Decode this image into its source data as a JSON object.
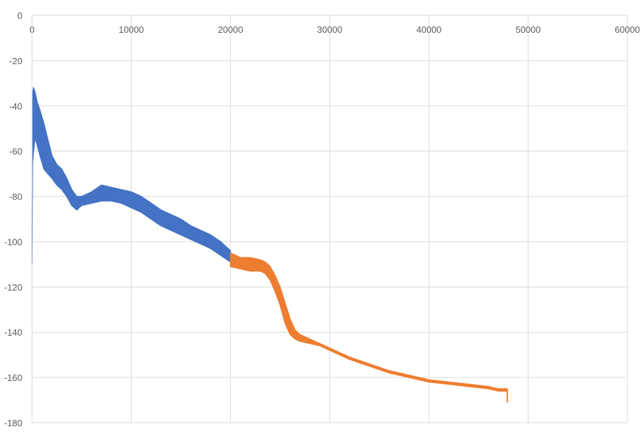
{
  "chart_data": {
    "type": "line",
    "title": "",
    "xlabel": "",
    "ylabel": "",
    "xlim": [
      0,
      60000
    ],
    "ylim": [
      -180,
      0
    ],
    "x_ticks": [
      0,
      10000,
      20000,
      30000,
      40000,
      50000,
      60000
    ],
    "y_ticks": [
      0,
      -20,
      -40,
      -60,
      -80,
      -100,
      -120,
      -140,
      -160,
      -180
    ],
    "x_tick_labels": [
      "0",
      "10000",
      "20000",
      "30000",
      "40000",
      "50000",
      "60000"
    ],
    "y_tick_labels": [
      "0",
      "-20",
      "-40",
      "-60",
      "-80",
      "-100",
      "-120",
      "-140",
      "-160",
      "-180"
    ],
    "grid": true,
    "legend": "none",
    "series": [
      {
        "color": "#4472C4",
        "x": [
          0,
          50,
          150,
          300,
          500,
          800,
          1200,
          1600,
          2000,
          2500,
          3000,
          3500,
          4000,
          4500,
          5000,
          6000,
          7000,
          8000,
          9000,
          10000,
          11000,
          12000,
          13000,
          14000,
          15000,
          16000,
          17000,
          18000,
          19000,
          20000
        ],
        "upper": [
          -93,
          -35,
          -32,
          -34,
          -38,
          -42,
          -48,
          -55,
          -62,
          -66,
          -68,
          -72,
          -77,
          -80,
          -80,
          -78,
          -75,
          -76,
          -77,
          -78,
          -80,
          -83,
          -86,
          -88,
          -90,
          -93,
          -95,
          -97,
          -100,
          -104
        ],
        "lower": [
          -110,
          -65,
          -60,
          -54,
          -57,
          -62,
          -68,
          -70,
          -72,
          -75,
          -77,
          -80,
          -84,
          -86,
          -84,
          -83,
          -82,
          -82,
          -83,
          -85,
          -87,
          -90,
          -93,
          -95,
          -97,
          -99,
          -101,
          -103,
          -106,
          -109
        ]
      },
      {
        "color": "#ED7D31",
        "x": [
          20000,
          21000,
          22000,
          23000,
          23500,
          24000,
          24500,
          25000,
          25500,
          26000,
          26500,
          27000,
          28000,
          29000,
          30000,
          32000,
          34000,
          36000,
          38000,
          40000,
          42000,
          44000,
          46000,
          47000,
          47900
        ],
        "upper": [
          -105,
          -107,
          -107,
          -108,
          -109,
          -111,
          -115,
          -120,
          -127,
          -134,
          -139,
          -141,
          -143,
          -145,
          -147,
          -151,
          -154,
          -157,
          -159,
          -161,
          -162,
          -163,
          -164,
          -165,
          -165
        ],
        "lower": [
          -111,
          -112,
          -113,
          -113,
          -114,
          -117,
          -122,
          -128,
          -136,
          -141,
          -143,
          -144,
          -145,
          -146,
          -148,
          -152,
          -155,
          -158,
          -160,
          -162,
          -163,
          -164,
          -165,
          -166,
          -166
        ],
        "end_drop": -171
      }
    ]
  }
}
